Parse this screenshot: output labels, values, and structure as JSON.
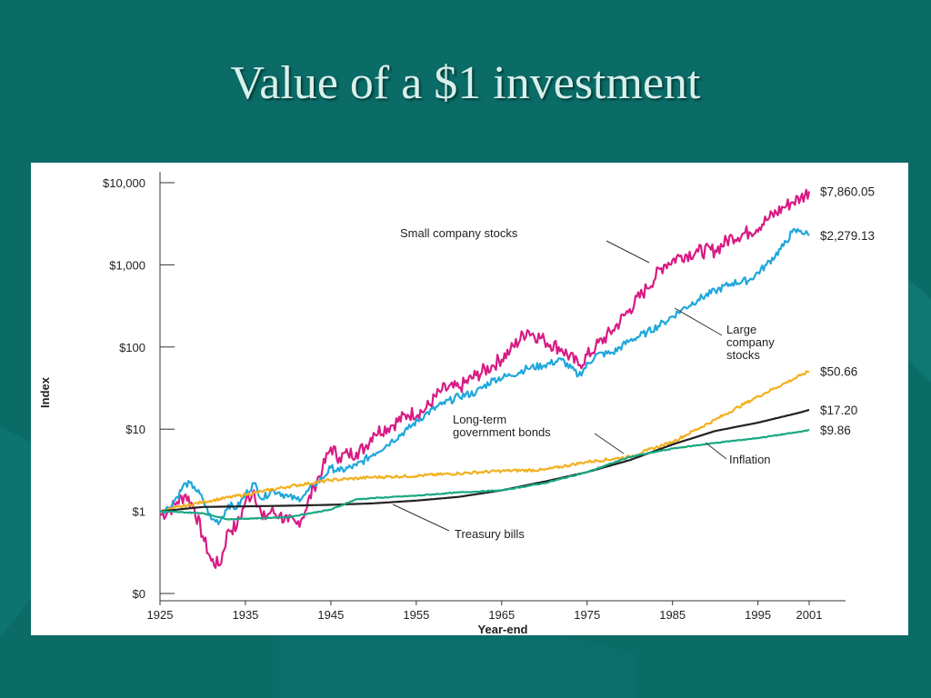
{
  "slide": {
    "title": "Value of a $1 investment"
  },
  "colors": {
    "background": "#0b6b66",
    "small_company_stocks": "#d81b84",
    "large_company_stocks": "#1ea7dc",
    "long_term_government_bonds": "#f2b021",
    "treasury_bills": "#222222",
    "inflation": "#1aa882"
  },
  "chart_data": {
    "type": "line",
    "title": "",
    "xlabel": "Year-end",
    "ylabel": "Index",
    "y_scale": "log",
    "xlim": [
      1925,
      2001
    ],
    "ylim": [
      0.1,
      10000
    ],
    "x_ticks": [
      1925,
      1935,
      1945,
      1955,
      1965,
      1975,
      1985,
      1995,
      2001
    ],
    "y_ticks": [
      {
        "value": 0.1,
        "label": "$0"
      },
      {
        "value": 1,
        "label": "$1"
      },
      {
        "value": 10,
        "label": "$10"
      },
      {
        "value": 100,
        "label": "$100"
      },
      {
        "value": 1000,
        "label": "$1,000"
      },
      {
        "value": 10000,
        "label": "$10,000"
      }
    ],
    "series": [
      {
        "key": "small_company_stocks",
        "name": "Small company stocks",
        "end_label": "$7,860.05",
        "x": [
          1925,
          1926,
          1927,
          1928,
          1929,
          1930,
          1931,
          1932,
          1933,
          1934,
          1935,
          1936,
          1937,
          1938,
          1939,
          1940,
          1941,
          1942,
          1943,
          1944,
          1945,
          1946,
          1947,
          1948,
          1949,
          1950,
          1952,
          1954,
          1956,
          1958,
          1960,
          1962,
          1964,
          1966,
          1968,
          1970,
          1972,
          1974,
          1976,
          1978,
          1980,
          1982,
          1984,
          1986,
          1988,
          1990,
          1992,
          1994,
          1996,
          1998,
          1999,
          2000,
          2001
        ],
        "values": [
          0.9,
          1.0,
          1.3,
          1.6,
          1.1,
          0.5,
          0.25,
          0.22,
          0.6,
          0.65,
          1.3,
          1.8,
          0.8,
          1.0,
          0.9,
          0.75,
          0.7,
          1.0,
          2.0,
          3.2,
          6.0,
          4.5,
          5.0,
          5.2,
          6.0,
          9.0,
          11,
          15,
          17,
          30,
          32,
          45,
          60,
          90,
          160,
          120,
          95,
          60,
          100,
          160,
          290,
          520,
          1000,
          1300,
          1450,
          1500,
          2200,
          2500,
          3500,
          5000,
          5800,
          6500,
          7860.05
        ]
      },
      {
        "key": "large_company_stocks",
        "name": "Large company stocks",
        "end_label": "$2,279.13",
        "x": [
          1925,
          1926,
          1927,
          1928,
          1929,
          1930,
          1931,
          1932,
          1933,
          1934,
          1935,
          1936,
          1937,
          1938,
          1939,
          1940,
          1941,
          1942,
          1943,
          1944,
          1945,
          1946,
          1948,
          1950,
          1952,
          1954,
          1956,
          1958,
          1960,
          1962,
          1964,
          1966,
          1968,
          1970,
          1972,
          1974,
          1976,
          1978,
          1980,
          1982,
          1984,
          1986,
          1988,
          1990,
          1992,
          1994,
          1996,
          1998,
          1999,
          2000,
          2001
        ],
        "values": [
          1.0,
          1.1,
          1.5,
          2.2,
          2.0,
          1.4,
          0.8,
          0.75,
          1.2,
          1.1,
          1.6,
          2.2,
          1.4,
          1.8,
          1.7,
          1.5,
          1.4,
          1.6,
          2.1,
          2.5,
          3.4,
          3.1,
          3.6,
          5.0,
          7.0,
          10,
          15,
          20,
          25,
          28,
          40,
          45,
          55,
          60,
          70,
          45,
          80,
          85,
          120,
          150,
          200,
          280,
          380,
          480,
          600,
          650,
          1000,
          1700,
          2500,
          2600,
          2279.13
        ]
      },
      {
        "key": "long_term_government_bonds",
        "name": "Long-term government bonds",
        "end_label": "$50.66",
        "x": [
          1925,
          1930,
          1935,
          1940,
          1945,
          1950,
          1955,
          1960,
          1965,
          1970,
          1975,
          1980,
          1982,
          1985,
          1990,
          1995,
          2000,
          2001
        ],
        "values": [
          1.0,
          1.3,
          1.6,
          2.0,
          2.4,
          2.6,
          2.7,
          2.9,
          3.1,
          3.2,
          4.0,
          4.6,
          5.5,
          7.0,
          13,
          25,
          45,
          50.66
        ]
      },
      {
        "key": "treasury_bills",
        "name": "Treasury bills",
        "end_label": "$17.20",
        "x": [
          1925,
          1930,
          1935,
          1940,
          1945,
          1950,
          1955,
          1960,
          1965,
          1970,
          1975,
          1980,
          1985,
          1990,
          1995,
          2000,
          2001
        ],
        "values": [
          1.0,
          1.13,
          1.15,
          1.17,
          1.2,
          1.25,
          1.35,
          1.5,
          1.8,
          2.3,
          3.0,
          4.2,
          6.5,
          9.5,
          12,
          16,
          17.2
        ]
      },
      {
        "key": "inflation",
        "name": "Inflation",
        "end_label": "$9.86",
        "x": [
          1925,
          1930,
          1933,
          1940,
          1945,
          1948,
          1950,
          1955,
          1960,
          1965,
          1970,
          1975,
          1980,
          1985,
          1990,
          1995,
          2000,
          2001
        ],
        "values": [
          1.0,
          0.95,
          0.8,
          0.85,
          1.05,
          1.4,
          1.45,
          1.55,
          1.7,
          1.8,
          2.2,
          3.0,
          4.6,
          5.8,
          6.8,
          7.8,
          9.3,
          9.86
        ]
      }
    ],
    "annotations": [
      {
        "key": "small_company_stocks",
        "lines": [
          "Small company stocks"
        ]
      },
      {
        "key": "large_company_stocks",
        "lines": [
          "Large",
          "company",
          "stocks"
        ]
      },
      {
        "key": "long_term_government_bonds",
        "lines": [
          "Long-term",
          "government bonds"
        ]
      },
      {
        "key": "treasury_bills",
        "lines": [
          "Treasury bills"
        ]
      },
      {
        "key": "inflation",
        "lines": [
          "Inflation"
        ]
      }
    ]
  }
}
